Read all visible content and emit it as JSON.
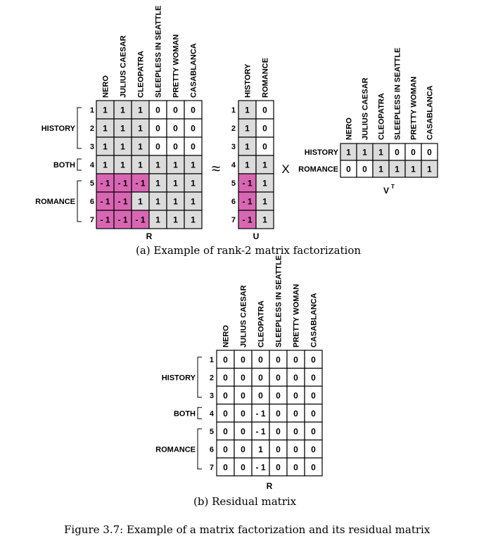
{
  "movies": [
    "NERO",
    "JULIUS CAESAR",
    "CLEOPATRA",
    "SLEEPLESS IN SEATTLE",
    "PRETTY WOMAN",
    "CASABLANCA"
  ],
  "rows": [
    "1",
    "2",
    "3",
    "4",
    "5",
    "6",
    "7"
  ],
  "groups": [
    {
      "label": "HISTORY",
      "rows": [
        1,
        3
      ]
    },
    {
      "label": "BOTH",
      "rows": [
        4,
        4
      ]
    },
    {
      "label": "ROMANCE",
      "rows": [
        5,
        7
      ]
    }
  ],
  "factors": [
    "HISTORY",
    "ROMANCE"
  ],
  "symbols": {
    "approx": "≈",
    "times": "X"
  },
  "colors": {
    "shaded": "#dcdcdc",
    "negative": "#d966b3",
    "white": "#ffffff",
    "border": "#000000"
  },
  "panel_a": {
    "R": {
      "label": "R",
      "values": [
        [
          1,
          1,
          1,
          0,
          0,
          0
        ],
        [
          1,
          1,
          1,
          0,
          0,
          0
        ],
        [
          1,
          1,
          1,
          0,
          0,
          0
        ],
        [
          1,
          1,
          1,
          1,
          1,
          1
        ],
        [
          -1,
          -1,
          -1,
          1,
          1,
          1
        ],
        [
          -1,
          -1,
          1,
          1,
          1,
          1
        ],
        [
          -1,
          -1,
          -1,
          1,
          1,
          1
        ]
      ],
      "fills": [
        [
          "g",
          "g",
          "g",
          "w",
          "w",
          "w"
        ],
        [
          "g",
          "g",
          "g",
          "w",
          "w",
          "w"
        ],
        [
          "g",
          "g",
          "g",
          "w",
          "w",
          "w"
        ],
        [
          "g",
          "g",
          "g",
          "g",
          "g",
          "g"
        ],
        [
          "p",
          "p",
          "p",
          "g",
          "g",
          "g"
        ],
        [
          "p",
          "p",
          "g",
          "g",
          "g",
          "g"
        ],
        [
          "p",
          "p",
          "p",
          "g",
          "g",
          "g"
        ]
      ]
    },
    "U": {
      "label": "U",
      "values": [
        [
          1,
          0
        ],
        [
          1,
          0
        ],
        [
          1,
          0
        ],
        [
          1,
          1
        ],
        [
          -1,
          1
        ],
        [
          -1,
          1
        ],
        [
          -1,
          1
        ]
      ],
      "fills": [
        [
          "g",
          "w"
        ],
        [
          "g",
          "w"
        ],
        [
          "g",
          "w"
        ],
        [
          "g",
          "g"
        ],
        [
          "p",
          "g"
        ],
        [
          "p",
          "g"
        ],
        [
          "p",
          "g"
        ]
      ]
    },
    "VT": {
      "label": "V",
      "label_sup": "T",
      "values": [
        [
          1,
          1,
          1,
          0,
          0,
          0
        ],
        [
          0,
          0,
          1,
          1,
          1,
          1
        ]
      ],
      "fills": [
        [
          "g",
          "g",
          "g",
          "w",
          "w",
          "w"
        ],
        [
          "w",
          "w",
          "g",
          "g",
          "g",
          "g"
        ]
      ]
    },
    "caption": "(a) Example of rank-2 matrix factorization"
  },
  "panel_b": {
    "R": {
      "label": "R",
      "values": [
        [
          0,
          0,
          0,
          0,
          0,
          0
        ],
        [
          0,
          0,
          0,
          0,
          0,
          0
        ],
        [
          0,
          0,
          0,
          0,
          0,
          0
        ],
        [
          0,
          0,
          -1,
          0,
          0,
          0
        ],
        [
          0,
          0,
          -1,
          0,
          0,
          0
        ],
        [
          0,
          0,
          1,
          0,
          0,
          0
        ],
        [
          0,
          0,
          -1,
          0,
          0,
          0
        ]
      ]
    },
    "caption": "(b) Residual matrix"
  },
  "figure_caption": "Figure 3.7: Example of a matrix factorization and its residual matrix"
}
